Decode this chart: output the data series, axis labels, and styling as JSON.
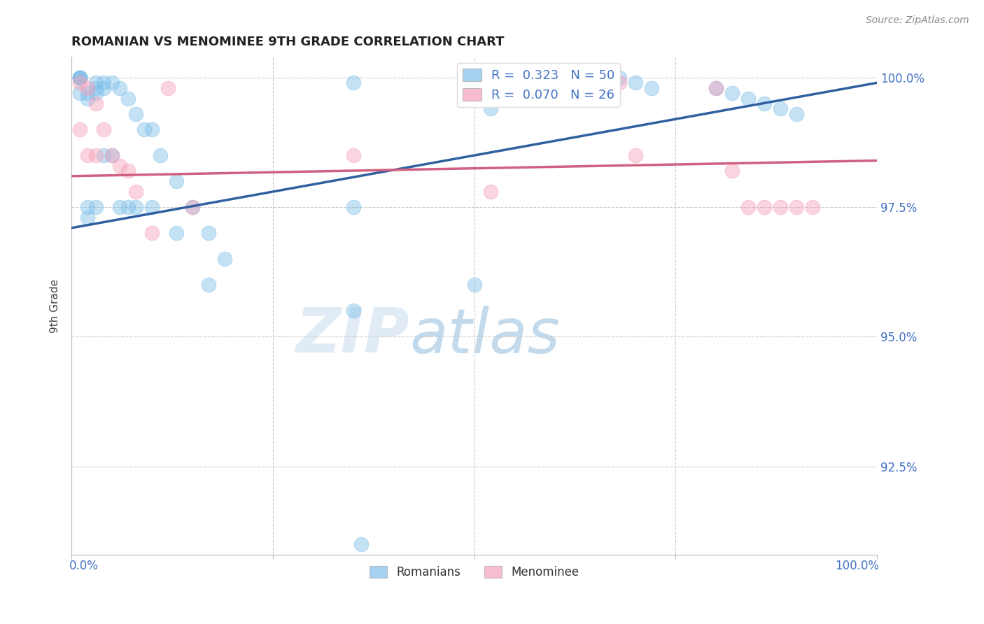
{
  "title": "ROMANIAN VS MENOMINEE 9TH GRADE CORRELATION CHART",
  "source": "Source: ZipAtlas.com",
  "ylabel": "9th Grade",
  "legend_label1": "Romanians",
  "legend_label2": "Menominee",
  "R1": 0.323,
  "N1": 50,
  "R2": 0.07,
  "N2": 26,
  "color_blue": "#7fbfea",
  "color_pink": "#f4a0b8",
  "color_blue_line": "#3060a0",
  "color_pink_line": "#d06080",
  "xlim": [
    0.0,
    1.0
  ],
  "ylim": [
    0.908,
    1.004
  ],
  "yticks": [
    0.925,
    0.95,
    0.975,
    1.0
  ],
  "xticks": [
    0.0,
    0.25,
    0.5,
    0.75,
    1.0
  ],
  "blue_x": [
    0.01,
    0.01,
    0.01,
    0.01,
    0.01,
    0.02,
    0.02,
    0.02,
    0.02,
    0.03,
    0.03,
    0.03,
    0.03,
    0.04,
    0.04,
    0.04,
    0.05,
    0.05,
    0.06,
    0.06,
    0.07,
    0.07,
    0.08,
    0.08,
    0.09,
    0.1,
    0.1,
    0.11,
    0.13,
    0.13,
    0.15,
    0.17,
    0.17,
    0.19,
    0.35,
    0.5,
    0.52,
    0.68,
    0.7,
    0.72,
    0.8,
    0.82,
    0.84,
    0.86,
    0.88,
    0.9,
    0.35,
    0.5,
    0.35,
    0.36
  ],
  "blue_y": [
    1.0,
    1.0,
    1.0,
    1.0,
    0.997,
    0.997,
    0.996,
    0.975,
    0.973,
    0.999,
    0.998,
    0.997,
    0.975,
    0.999,
    0.998,
    0.985,
    0.999,
    0.985,
    0.998,
    0.975,
    0.996,
    0.975,
    0.993,
    0.975,
    0.99,
    0.99,
    0.975,
    0.985,
    0.98,
    0.97,
    0.975,
    0.97,
    0.96,
    0.965,
    0.999,
    0.998,
    0.994,
    1.0,
    0.999,
    0.998,
    0.998,
    0.997,
    0.996,
    0.995,
    0.994,
    0.993,
    0.975,
    0.96,
    0.955,
    0.91
  ],
  "pink_x": [
    0.01,
    0.01,
    0.02,
    0.02,
    0.03,
    0.03,
    0.04,
    0.05,
    0.06,
    0.07,
    0.08,
    0.1,
    0.12,
    0.15,
    0.35,
    0.5,
    0.52,
    0.68,
    0.7,
    0.8,
    0.82,
    0.84,
    0.86,
    0.88,
    0.9,
    0.92
  ],
  "pink_y": [
    0.999,
    0.99,
    0.998,
    0.985,
    0.995,
    0.985,
    0.99,
    0.985,
    0.983,
    0.982,
    0.978,
    0.97,
    0.998,
    0.975,
    0.985,
    0.998,
    0.978,
    0.999,
    0.985,
    0.998,
    0.982,
    0.975,
    0.975,
    0.975,
    0.975,
    0.975
  ],
  "watermark_zip": "ZIP",
  "watermark_atlas": "atlas",
  "background_color": "#ffffff"
}
